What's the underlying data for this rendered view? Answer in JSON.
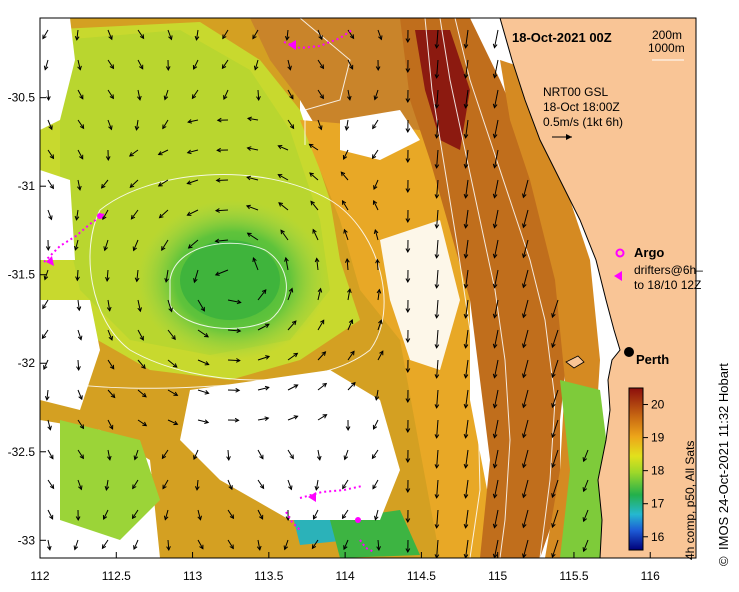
{
  "map": {
    "title": "18-Oct-2021 00Z",
    "legend_contours": [
      "200m",
      "1000m"
    ],
    "current_info": [
      "NRT00 GSL",
      "18-Oct 18:00Z",
      "0.5m/s (1kt 6h)"
    ],
    "legend_argo": "Argo",
    "legend_drifters": [
      "drifters@6h–",
      "to 18/10 12Z"
    ],
    "city": "Perth",
    "credit": "IMOS 24-Oct-2021 11:32 Hobart",
    "copyright": "©",
    "colorbar_label": "4h comp, p50, All Sats",
    "colorbar_ticks": [
      "20",
      "19",
      "18",
      "17",
      "16"
    ],
    "colorbar_range": [
      15.6,
      20.5
    ],
    "x_ticks": [
      "112",
      "112.5",
      "113",
      "113.5",
      "114",
      "114.5",
      "115",
      "115.5",
      "116"
    ],
    "y_ticks": [
      "-30.5",
      "-31",
      "-31.5",
      "-32",
      "-32.5",
      "-33"
    ],
    "lon_range": [
      112,
      116.3
    ],
    "lat_range": [
      -33.1,
      -30.05
    ],
    "colors": {
      "land": "#f9c596",
      "ocean_missing": "#ffffff",
      "argo": "#ff00ff",
      "drifters": "#ff00ff"
    }
  }
}
